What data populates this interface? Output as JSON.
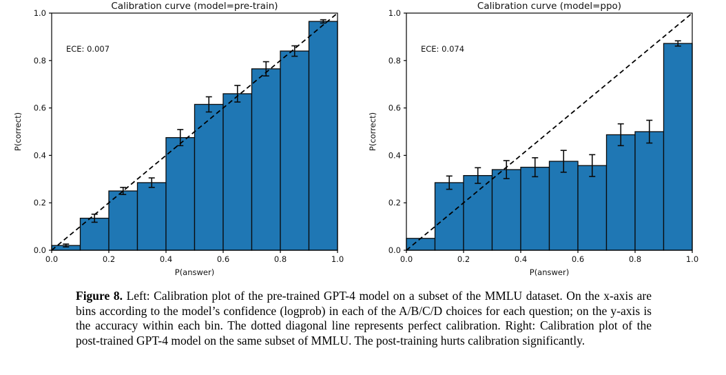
{
  "figure": {
    "caption_label": "Figure 8.",
    "caption_text": " Left: Calibration plot of the pre-trained GPT-4 model on a subset of the MMLU dataset. On the x-axis are bins according to the model’s confidence (logprob) in each of the A/B/C/D choices for each question; on the y-axis is the accuracy within each bin. The dotted diagonal line represents perfect calibration. Right: Calibration plot of the post-trained GPT-4 model on the same subset of MMLU. The post-training hurts calibration significantly."
  },
  "colors": {
    "bar_fill": "#1f77b4",
    "bar_edge": "#0a0a0a",
    "error_bar": "#0a0a0a",
    "diagonal": "#000000",
    "axis": "#000000",
    "text": "#111111",
    "background": "#ffffff"
  },
  "chart_data": [
    {
      "type": "bar",
      "title": "Calibration curve (model=pre-train)",
      "ece_label": "ECE: 0.007",
      "xlabel": "P(answer)",
      "ylabel": "P(correct)",
      "xlim": [
        0.0,
        1.0
      ],
      "ylim": [
        0.0,
        1.0
      ],
      "xticks": [
        0.0,
        0.2,
        0.4,
        0.6,
        0.8,
        1.0
      ],
      "yticks": [
        0.0,
        0.2,
        0.4,
        0.6,
        0.8,
        1.0
      ],
      "grid": false,
      "legend": null,
      "bin_width": 0.1,
      "bins_start": [
        0.0,
        0.1,
        0.2,
        0.3,
        0.4,
        0.5,
        0.6,
        0.7,
        0.8,
        0.9
      ],
      "values": [
        0.02,
        0.135,
        0.25,
        0.285,
        0.475,
        0.615,
        0.66,
        0.765,
        0.84,
        0.965
      ],
      "errors": [
        0.006,
        0.017,
        0.015,
        0.02,
        0.034,
        0.032,
        0.035,
        0.03,
        0.022,
        0.007
      ],
      "diagonal": {
        "type": "dashed",
        "from": [
          0.0,
          0.0
        ],
        "to": [
          1.0,
          1.0
        ],
        "meaning": "perfect calibration"
      }
    },
    {
      "type": "bar",
      "title": "Calibration curve (model=ppo)",
      "ece_label": "ECE: 0.074",
      "xlabel": "P(answer)",
      "ylabel": "P(correct)",
      "xlim": [
        0.0,
        1.0
      ],
      "ylim": [
        0.0,
        1.0
      ],
      "xticks": [
        0.0,
        0.2,
        0.4,
        0.6,
        0.8,
        1.0
      ],
      "yticks": [
        0.0,
        0.2,
        0.4,
        0.6,
        0.8,
        1.0
      ],
      "grid": false,
      "legend": null,
      "bin_width": 0.1,
      "bins_start": [
        0.0,
        0.1,
        0.2,
        0.3,
        0.4,
        0.5,
        0.6,
        0.7,
        0.8,
        0.9
      ],
      "values": [
        0.05,
        0.285,
        0.315,
        0.34,
        0.35,
        0.375,
        0.357,
        0.487,
        0.5,
        0.872
      ],
      "errors": [
        0,
        0.028,
        0.033,
        0.038,
        0.04,
        0.046,
        0.046,
        0.046,
        0.048,
        0.011
      ],
      "diagonal": {
        "type": "dashed",
        "from": [
          0.0,
          0.0
        ],
        "to": [
          1.0,
          1.0
        ],
        "meaning": "perfect calibration"
      }
    }
  ]
}
